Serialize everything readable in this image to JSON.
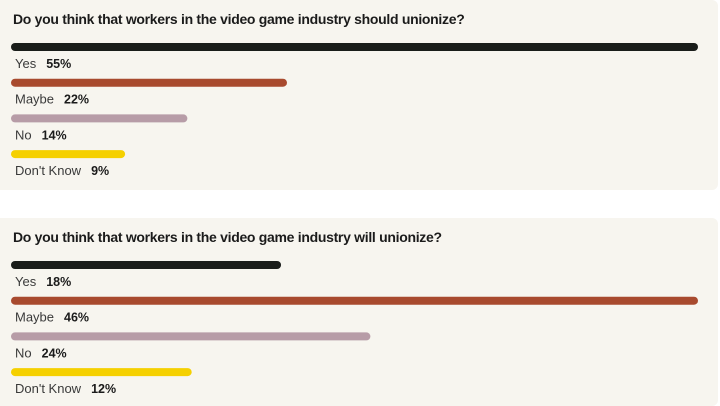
{
  "chart_data": [
    {
      "type": "bar",
      "orientation": "horizontal",
      "title": "Do you think that workers in the video game industry should unionize?",
      "categories": [
        "Yes",
        "Maybe",
        "No",
        "Don't Know"
      ],
      "values": [
        55,
        22,
        14,
        9
      ],
      "value_suffix": "%",
      "xlim": [
        0,
        55
      ],
      "colors": [
        "#1a1d1a",
        "#a84a2e",
        "#b79ca7",
        "#f5d000"
      ],
      "grid": false,
      "legend": "none"
    },
    {
      "type": "bar",
      "orientation": "horizontal",
      "title": "Do you think that workers in the video game industry will unionize?",
      "categories": [
        "Yes",
        "Maybe",
        "No",
        "Don't Know"
      ],
      "values": [
        18,
        46,
        24,
        12
      ],
      "value_suffix": "%",
      "xlim": [
        0,
        46
      ],
      "colors": [
        "#1a1d1a",
        "#a84a2e",
        "#b79ca7",
        "#f5d000"
      ],
      "grid": false,
      "legend": "none"
    }
  ]
}
